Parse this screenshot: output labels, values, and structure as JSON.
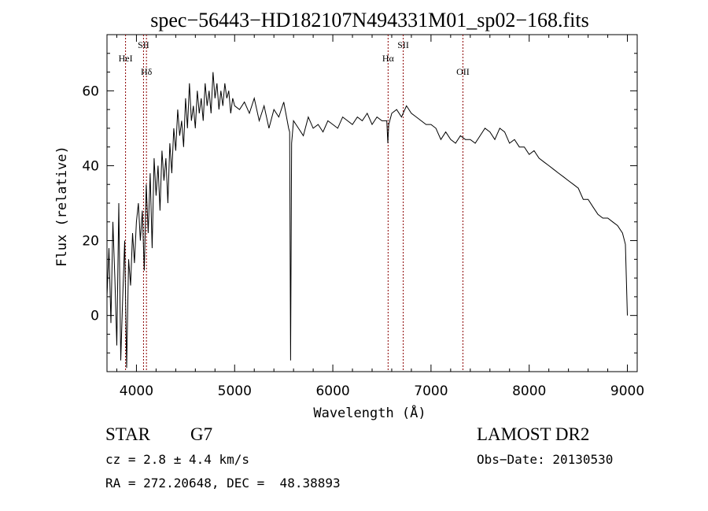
{
  "chart_data": {
    "type": "line",
    "title": "spec−56443−HD182107N494331M01_sp02−168.fits",
    "xlabel": "Wavelength (Å)",
    "ylabel": "Flux (relative)",
    "xlim": [
      3700,
      9100
    ],
    "ylim": [
      -15,
      75
    ],
    "x_ticks": [
      4000,
      5000,
      6000,
      7000,
      8000,
      9000
    ],
    "y_ticks": [
      0,
      20,
      40,
      60
    ],
    "grid": false,
    "series": [
      {
        "x": [
          3700,
          3720,
          3740,
          3760,
          3780,
          3800,
          3820,
          3840,
          3860,
          3880,
          3900,
          3920,
          3940,
          3960,
          3980,
          4000,
          4020,
          4040,
          4060,
          4080,
          4100,
          4120,
          4140,
          4160,
          4180,
          4200,
          4220,
          4240,
          4260,
          4280,
          4300,
          4320,
          4340,
          4360,
          4380,
          4400,
          4420,
          4440,
          4460,
          4480,
          4500,
          4520,
          4540,
          4560,
          4580,
          4600,
          4620,
          4640,
          4660,
          4680,
          4700,
          4720,
          4740,
          4760,
          4780,
          4800,
          4820,
          4840,
          4860,
          4880,
          4900,
          4920,
          4940,
          4960,
          4980,
          5000,
          5050,
          5100,
          5150,
          5200,
          5250,
          5300,
          5350,
          5400,
          5450,
          5500,
          5550,
          5560,
          5570,
          5580,
          5600,
          5650,
          5700,
          5750,
          5800,
          5850,
          5900,
          5950,
          6000,
          6050,
          6100,
          6150,
          6200,
          6250,
          6300,
          6350,
          6400,
          6450,
          6500,
          6550,
          6560,
          6570,
          6600,
          6650,
          6700,
          6750,
          6800,
          6850,
          6900,
          6950,
          7000,
          7050,
          7100,
          7150,
          7200,
          7250,
          7300,
          7350,
          7400,
          7450,
          7500,
          7550,
          7600,
          7650,
          7700,
          7750,
          7800,
          7850,
          7900,
          7950,
          8000,
          8050,
          8100,
          8150,
          8200,
          8250,
          8300,
          8350,
          8400,
          8450,
          8500,
          8550,
          8600,
          8650,
          8700,
          8750,
          8800,
          8850,
          8900,
          8950,
          8980,
          9000
        ],
        "y": [
          5,
          18,
          -2,
          25,
          10,
          -8,
          30,
          -12,
          5,
          20,
          -14,
          15,
          8,
          22,
          14,
          25,
          30,
          20,
          28,
          12,
          35,
          22,
          38,
          18,
          42,
          32,
          40,
          28,
          44,
          36,
          42,
          30,
          46,
          38,
          50,
          44,
          55,
          48,
          52,
          45,
          58,
          50,
          62,
          52,
          56,
          50,
          60,
          54,
          58,
          52,
          62,
          56,
          60,
          54,
          65,
          58,
          62,
          55,
          60,
          56,
          62,
          58,
          60,
          54,
          58,
          56,
          55,
          57,
          54,
          58,
          52,
          56,
          50,
          55,
          53,
          57,
          50,
          49,
          -12,
          46,
          52,
          50,
          48,
          53,
          50,
          51,
          49,
          52,
          51,
          50,
          53,
          52,
          51,
          53,
          52,
          54,
          51,
          53,
          52,
          52,
          46,
          51,
          54,
          55,
          53,
          56,
          54,
          53,
          52,
          51,
          51,
          50,
          47,
          49,
          47,
          46,
          48,
          47,
          47,
          46,
          48,
          50,
          49,
          47,
          50,
          49,
          46,
          47,
          45,
          45,
          43,
          44,
          42,
          41,
          40,
          39,
          38,
          37,
          36,
          35,
          34,
          31,
          31,
          29,
          27,
          26,
          26,
          25,
          24,
          22,
          19,
          0
        ]
      }
    ],
    "spectral_lines": [
      {
        "label": "HeI",
        "wavelength": 3889,
        "row": 2
      },
      {
        "label": "SII",
        "wavelength": 4072,
        "row": 1
      },
      {
        "label": "Hδ",
        "wavelength": 4102,
        "row": 3
      },
      {
        "label": "Hα",
        "wavelength": 6563,
        "row": 2
      },
      {
        "label": "SII",
        "wavelength": 6717,
        "row": 1
      },
      {
        "label": "OII",
        "wavelength": 7325,
        "row": 3
      }
    ],
    "line_color": "#000000",
    "marker_color": "#8b0000"
  },
  "info": {
    "class": "STAR",
    "subclass": "G7",
    "survey": "LAMOST DR2",
    "cz": "cz = 2.8 ± 4.4 km/s",
    "obs_date": "Obs−Date: 20130530",
    "coords": "RA = 272.20648, DEC =  48.38893"
  }
}
